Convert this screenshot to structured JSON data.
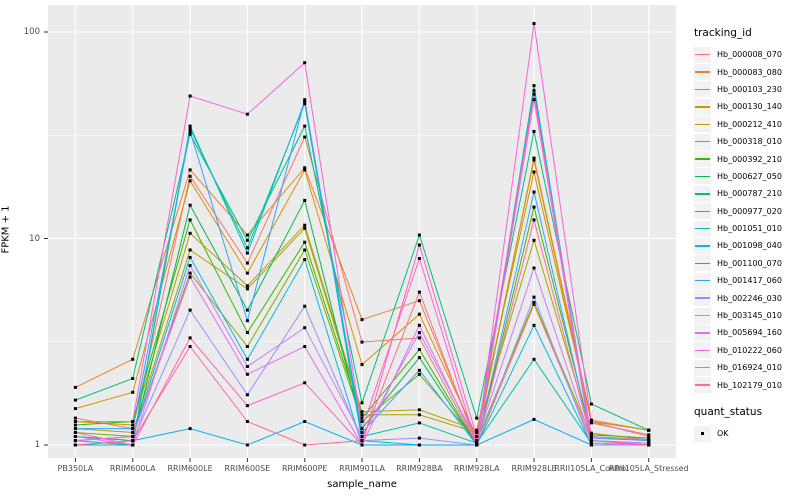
{
  "figure": {
    "panel_background": "#EBEBEB",
    "gridline_color": "#FFFFFF",
    "point_color": "#000000",
    "axis_text_color": "#4D4D4D",
    "axis_title_color": "#000000",
    "legend_key_background": "#F2F2F2"
  },
  "axes": {
    "x_title": "sample_name",
    "y_title": "FPKM + 1",
    "y_tick_labels": [
      "1",
      "10",
      "100"
    ]
  },
  "legend": {
    "tracking_title": "tracking_id",
    "quant_title": "quant_status",
    "quant_ok_label": "OK"
  },
  "chart_data": {
    "type": "line",
    "title": "",
    "xlabel": "sample_name",
    "ylabel": "FPKM + 1",
    "y_scale": "log10",
    "y_ticks": [
      1,
      10,
      100
    ],
    "ylim": [
      1,
      136
    ],
    "grid": true,
    "legend_position": "right",
    "legend_title": "tracking_id",
    "quant_status_legend": {
      "title": "quant_status",
      "items": [
        "OK"
      ]
    },
    "point_marker": "black-square",
    "categories": [
      "PB350LA",
      "RRIM600LA",
      "RRIM600LE",
      "RRIM600SE",
      "RRIM600PE",
      "RRIM901LA",
      "RRIM928BA",
      "RRIM928LA",
      "RRIM928LE",
      "RRII105LA_Control",
      "RRII105LA_Stressed"
    ],
    "series": [
      {
        "name": "Hb_000008_070",
        "color": "#F8766D",
        "values": [
          1.35,
          1.2,
          20.0,
          7.6,
          31.0,
          3.15,
          3.3,
          1.0,
          4.8,
          1.05,
          1.0
        ]
      },
      {
        "name": "Hb_000083_080",
        "color": "#EA8331",
        "values": [
          1.9,
          2.6,
          21.5,
          10.4,
          22.0,
          4.05,
          5.0,
          1.05,
          24.5,
          1.32,
          1.18
        ]
      },
      {
        "name": "Hb_000103_230",
        "color": "#D89000",
        "values": [
          1.5,
          1.8,
          19.0,
          6.8,
          21.5,
          2.45,
          4.3,
          1.1,
          24.0,
          1.28,
          1.12
        ]
      },
      {
        "name": "Hb_000130_140",
        "color": "#C09B00",
        "values": [
          1.3,
          1.25,
          10.6,
          5.9,
          11.6,
          1.45,
          1.48,
          1.18,
          21.0,
          1.3,
          1.18
        ]
      },
      {
        "name": "Hb_000212_410",
        "color": "#A3A500",
        "values": [
          1.2,
          1.15,
          8.8,
          5.7,
          11.2,
          1.4,
          1.4,
          1.15,
          9.8,
          1.14,
          1.06
        ]
      },
      {
        "name": "Hb_000318_010",
        "color": "#7CAE00",
        "values": [
          1.15,
          1.1,
          6.8,
          3.0,
          8.8,
          1.3,
          2.2,
          1.05,
          4.9,
          1.1,
          1.05
        ]
      },
      {
        "name": "Hb_000392_210",
        "color": "#39B600",
        "values": [
          1.25,
          1.3,
          12.3,
          3.5,
          9.6,
          1.35,
          2.9,
          1.0,
          14.2,
          1.12,
          1.08
        ]
      },
      {
        "name": "Hb_000627_050",
        "color": "#00BB4E",
        "values": [
          1.1,
          1.05,
          14.5,
          4.5,
          15.3,
          1.2,
          2.65,
          1.0,
          52.0,
          1.05,
          1.0
        ]
      },
      {
        "name": "Hb_000787_210",
        "color": "#00BF7D",
        "values": [
          1.65,
          2.1,
          32.0,
          9.8,
          35.0,
          1.6,
          10.4,
          1.35,
          33.0,
          1.58,
          1.18
        ]
      },
      {
        "name": "Hb_000977_020",
        "color": "#00C1A3",
        "values": [
          1.05,
          1.0,
          34.0,
          9.0,
          45.0,
          1.1,
          1.28,
          1.02,
          2.6,
          1.02,
          1.0
        ]
      },
      {
        "name": "Hb_001051_010",
        "color": "#00BFC4",
        "values": [
          1.0,
          1.0,
          35.0,
          8.5,
          46.0,
          1.05,
          1.0,
          1.0,
          55.0,
          1.05,
          1.02
        ]
      },
      {
        "name": "Hb_001098_040",
        "color": "#00BAE0",
        "values": [
          1.05,
          1.1,
          8.1,
          2.6,
          7.9,
          1.0,
          1.0,
          1.0,
          3.8,
          1.0,
          1.0
        ]
      },
      {
        "name": "Hb_001100_070",
        "color": "#00B0F6",
        "values": [
          1.0,
          1.05,
          1.2,
          1.0,
          1.3,
          1.0,
          1.0,
          1.0,
          1.33,
          1.0,
          1.0
        ]
      },
      {
        "name": "Hb_001417_060",
        "color": "#35A2FF",
        "values": [
          1.2,
          1.2,
          33.0,
          4.0,
          47.0,
          1.15,
          2.3,
          1.0,
          16.8,
          1.08,
          1.05
        ]
      },
      {
        "name": "Hb_002246_030",
        "color": "#9590FF",
        "values": [
          1.0,
          1.05,
          4.5,
          1.75,
          4.7,
          1.05,
          1.08,
          1.0,
          5.2,
          1.0,
          1.0
        ]
      },
      {
        "name": "Hb_003145_010",
        "color": "#C77CFF",
        "values": [
          1.1,
          1.0,
          7.4,
          2.4,
          3.7,
          1.1,
          3.5,
          1.05,
          7.2,
          1.05,
          1.02
        ]
      },
      {
        "name": "Hb_005694_160",
        "color": "#E76BF3",
        "values": [
          1.05,
          1.1,
          6.5,
          2.2,
          3.0,
          1.0,
          3.8,
          1.0,
          47.0,
          1.02,
          1.0
        ]
      },
      {
        "name": "Hb_010222_060",
        "color": "#FA62DB",
        "values": [
          1.3,
          1.3,
          49.0,
          40.0,
          71.0,
          1.2,
          8.0,
          1.0,
          110.0,
          1.3,
          1.1
        ]
      },
      {
        "name": "Hb_016924_010",
        "color": "#FF62BC",
        "values": [
          1.15,
          1.0,
          3.3,
          1.55,
          2.0,
          1.0,
          9.3,
          1.1,
          50.0,
          1.1,
          1.06
        ]
      },
      {
        "name": "Hb_102179_010",
        "color": "#FF6A98",
        "values": [
          1.0,
          1.05,
          3.0,
          1.3,
          1.0,
          1.05,
          5.5,
          1.0,
          12.3,
          1.05,
          1.0
        ]
      }
    ]
  }
}
